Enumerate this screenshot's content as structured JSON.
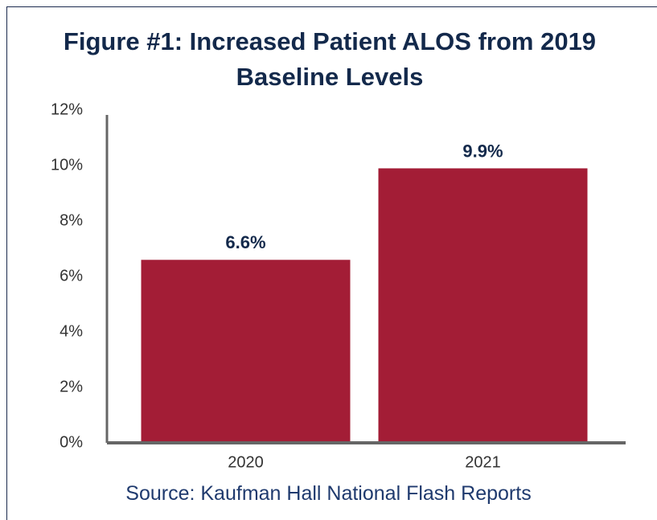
{
  "chart_data": {
    "type": "bar",
    "title": "Figure #1: Increased Patient ALOS from 2019 Baseline Levels",
    "categories": [
      "2020",
      "2021"
    ],
    "values": [
      6.6,
      9.9
    ],
    "value_labels": [
      "6.6%",
      "9.9%"
    ],
    "color": "#a31d36",
    "ylim": [
      0,
      12
    ],
    "yticks": [
      {
        "value": 0,
        "label": "0%"
      },
      {
        "value": 2,
        "label": "2%"
      },
      {
        "value": 4,
        "label": "4%"
      },
      {
        "value": 6,
        "label": "6%"
      },
      {
        "value": 8,
        "label": "8%"
      },
      {
        "value": 10,
        "label": "10%"
      },
      {
        "value": 12,
        "label": "12%"
      }
    ],
    "grid": false,
    "source": "Source: Kaufman Hall National Flash Reports"
  }
}
